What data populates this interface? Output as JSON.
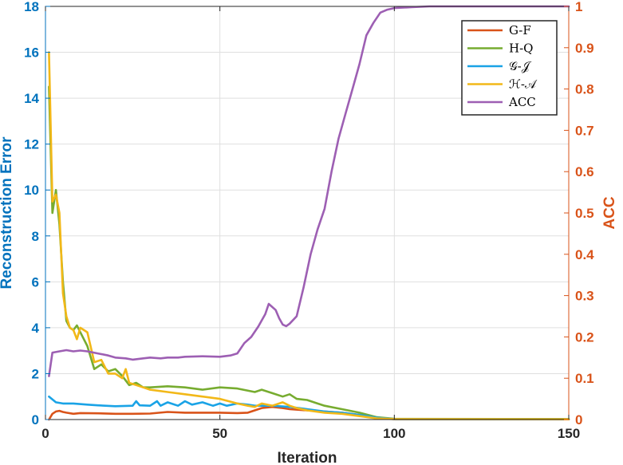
{
  "chart_data": {
    "type": "line",
    "xlabel": "Iteration",
    "ylabel_left": "Reconstruction Error",
    "ylabel_right": "ACC",
    "xlim": [
      0,
      150
    ],
    "ylim_left": [
      0,
      18
    ],
    "ylim_right": [
      0,
      1
    ],
    "xticks": [
      "0",
      "50",
      "100",
      "150"
    ],
    "xtick_values": [
      0,
      50,
      100,
      150
    ],
    "yticks_left": [
      "0",
      "2",
      "4",
      "6",
      "8",
      "10",
      "12",
      "14",
      "16",
      "18"
    ],
    "ytick_left_values": [
      0,
      2,
      4,
      6,
      8,
      10,
      12,
      14,
      16,
      18
    ],
    "yticks_right": [
      "0",
      "0.1",
      "0.2",
      "0.3",
      "0.4",
      "0.5",
      "0.6",
      "0.7",
      "0.8",
      "0.9",
      "1"
    ],
    "ytick_right_values": [
      0,
      0.1,
      0.2,
      0.3,
      0.4,
      0.5,
      0.6,
      0.7,
      0.8,
      0.9,
      1
    ],
    "grid": true,
    "legend_position": "top-right",
    "series": [
      {
        "name": "G-F",
        "axis": "left",
        "color": "#D95319",
        "points": [
          [
            1,
            0.0
          ],
          [
            2,
            0.25
          ],
          [
            3,
            0.35
          ],
          [
            4,
            0.38
          ],
          [
            5,
            0.33
          ],
          [
            6,
            0.3
          ],
          [
            8,
            0.25
          ],
          [
            10,
            0.28
          ],
          [
            15,
            0.27
          ],
          [
            20,
            0.25
          ],
          [
            25,
            0.25
          ],
          [
            30,
            0.26
          ],
          [
            35,
            0.33
          ],
          [
            40,
            0.3
          ],
          [
            45,
            0.3
          ],
          [
            50,
            0.3
          ],
          [
            55,
            0.28
          ],
          [
            58,
            0.3
          ],
          [
            62,
            0.5
          ],
          [
            65,
            0.55
          ],
          [
            68,
            0.5
          ],
          [
            70,
            0.45
          ],
          [
            75,
            0.4
          ],
          [
            80,
            0.35
          ],
          [
            85,
            0.3
          ],
          [
            90,
            0.2
          ],
          [
            95,
            0.08
          ],
          [
            100,
            0.02
          ],
          [
            150,
            0.01
          ]
        ]
      },
      {
        "name": "H-Q",
        "axis": "left",
        "color": "#77AC30",
        "points": [
          [
            1,
            14.5
          ],
          [
            2,
            9.0
          ],
          [
            3,
            10.0
          ],
          [
            4,
            8.5
          ],
          [
            5,
            6.0
          ],
          [
            6,
            4.3
          ],
          [
            7,
            4.0
          ],
          [
            8,
            3.9
          ],
          [
            9,
            4.1
          ],
          [
            10,
            3.8
          ],
          [
            12,
            3.2
          ],
          [
            14,
            2.2
          ],
          [
            16,
            2.4
          ],
          [
            18,
            2.1
          ],
          [
            20,
            2.2
          ],
          [
            22,
            1.9
          ],
          [
            24,
            1.5
          ],
          [
            26,
            1.6
          ],
          [
            28,
            1.4
          ],
          [
            30,
            1.4
          ],
          [
            35,
            1.45
          ],
          [
            40,
            1.4
          ],
          [
            45,
            1.3
          ],
          [
            50,
            1.4
          ],
          [
            55,
            1.35
          ],
          [
            60,
            1.2
          ],
          [
            62,
            1.3
          ],
          [
            65,
            1.15
          ],
          [
            68,
            1.0
          ],
          [
            70,
            1.1
          ],
          [
            72,
            0.9
          ],
          [
            75,
            0.85
          ],
          [
            78,
            0.7
          ],
          [
            80,
            0.6
          ],
          [
            85,
            0.45
          ],
          [
            90,
            0.3
          ],
          [
            95,
            0.1
          ],
          [
            100,
            0.03
          ],
          [
            150,
            0.02
          ]
        ]
      },
      {
        "name": "𝒢-𝒥",
        "axis": "left",
        "color": "#1AA3E6",
        "points": [
          [
            1,
            1.0
          ],
          [
            3,
            0.75
          ],
          [
            5,
            0.7
          ],
          [
            8,
            0.7
          ],
          [
            12,
            0.65
          ],
          [
            15,
            0.62
          ],
          [
            20,
            0.58
          ],
          [
            25,
            0.6
          ],
          [
            26,
            0.8
          ],
          [
            27,
            0.62
          ],
          [
            30,
            0.6
          ],
          [
            32,
            0.8
          ],
          [
            33,
            0.6
          ],
          [
            35,
            0.75
          ],
          [
            38,
            0.6
          ],
          [
            40,
            0.8
          ],
          [
            42,
            0.65
          ],
          [
            45,
            0.75
          ],
          [
            48,
            0.6
          ],
          [
            50,
            0.7
          ],
          [
            52,
            0.6
          ],
          [
            55,
            0.7
          ],
          [
            58,
            0.65
          ],
          [
            60,
            0.6
          ],
          [
            65,
            0.6
          ],
          [
            70,
            0.55
          ],
          [
            75,
            0.45
          ],
          [
            80,
            0.35
          ],
          [
            85,
            0.3
          ],
          [
            90,
            0.2
          ],
          [
            95,
            0.08
          ],
          [
            100,
            0.02
          ],
          [
            150,
            0.01
          ]
        ]
      },
      {
        "name": "ℋ-𝒜",
        "axis": "left",
        "color": "#F2B818",
        "points": [
          [
            1,
            16.0
          ],
          [
            2,
            9.5
          ],
          [
            3,
            9.8
          ],
          [
            4,
            9.0
          ],
          [
            5,
            5.5
          ],
          [
            6,
            4.5
          ],
          [
            7,
            4.0
          ],
          [
            8,
            3.9
          ],
          [
            9,
            3.5
          ],
          [
            10,
            4.0
          ],
          [
            12,
            3.8
          ],
          [
            14,
            2.5
          ],
          [
            16,
            2.6
          ],
          [
            18,
            2.0
          ],
          [
            20,
            2.0
          ],
          [
            22,
            1.8
          ],
          [
            23,
            2.2
          ],
          [
            24,
            1.6
          ],
          [
            26,
            1.5
          ],
          [
            28,
            1.4
          ],
          [
            30,
            1.3
          ],
          [
            35,
            1.2
          ],
          [
            40,
            1.1
          ],
          [
            45,
            1.0
          ],
          [
            50,
            0.9
          ],
          [
            55,
            0.7
          ],
          [
            58,
            0.6
          ],
          [
            60,
            0.55
          ],
          [
            62,
            0.7
          ],
          [
            65,
            0.6
          ],
          [
            68,
            0.75
          ],
          [
            70,
            0.6
          ],
          [
            72,
            0.5
          ],
          [
            75,
            0.4
          ],
          [
            80,
            0.3
          ],
          [
            85,
            0.25
          ],
          [
            90,
            0.15
          ],
          [
            95,
            0.05
          ],
          [
            100,
            0.02
          ],
          [
            150,
            0.01
          ]
        ]
      },
      {
        "name": "ACC",
        "axis": "right",
        "color": "#9D5FB3",
        "points": [
          [
            1,
            0.105
          ],
          [
            2,
            0.162
          ],
          [
            4,
            0.165
          ],
          [
            6,
            0.168
          ],
          [
            8,
            0.165
          ],
          [
            10,
            0.167
          ],
          [
            12,
            0.165
          ],
          [
            15,
            0.16
          ],
          [
            18,
            0.155
          ],
          [
            20,
            0.15
          ],
          [
            23,
            0.148
          ],
          [
            25,
            0.145
          ],
          [
            28,
            0.148
          ],
          [
            30,
            0.15
          ],
          [
            33,
            0.148
          ],
          [
            35,
            0.15
          ],
          [
            38,
            0.15
          ],
          [
            40,
            0.152
          ],
          [
            45,
            0.153
          ],
          [
            50,
            0.152
          ],
          [
            53,
            0.155
          ],
          [
            55,
            0.16
          ],
          [
            57,
            0.185
          ],
          [
            59,
            0.2
          ],
          [
            61,
            0.225
          ],
          [
            63,
            0.255
          ],
          [
            64,
            0.28
          ],
          [
            66,
            0.265
          ],
          [
            67,
            0.245
          ],
          [
            68,
            0.23
          ],
          [
            69,
            0.226
          ],
          [
            70,
            0.232
          ],
          [
            72,
            0.25
          ],
          [
            74,
            0.32
          ],
          [
            76,
            0.4
          ],
          [
            78,
            0.46
          ],
          [
            80,
            0.51
          ],
          [
            82,
            0.6
          ],
          [
            84,
            0.68
          ],
          [
            86,
            0.74
          ],
          [
            88,
            0.8
          ],
          [
            90,
            0.86
          ],
          [
            92,
            0.93
          ],
          [
            94,
            0.96
          ],
          [
            96,
            0.985
          ],
          [
            98,
            0.992
          ],
          [
            100,
            0.996
          ],
          [
            105,
            0.998
          ],
          [
            110,
            1.0
          ],
          [
            150,
            1.0
          ]
        ]
      }
    ]
  }
}
